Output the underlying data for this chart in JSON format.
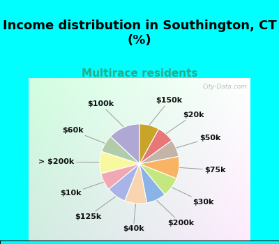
{
  "title": "Income distribution in Southington, CT\n(%)",
  "subtitle": "Multirace residents",
  "bg_cyan": "#00FFFF",
  "bg_chart_color": "#d4ede4",
  "labels": [
    "$100k",
    "$60k",
    "> $200k",
    "$10k",
    "$125k",
    "$40k",
    "$200k",
    "$30k",
    "$75k",
    "$50k",
    "$20k",
    "$150k"
  ],
  "values": [
    13,
    7,
    9,
    7,
    8,
    9,
    8,
    8,
    9,
    7,
    7,
    8
  ],
  "colors": [
    "#b0a8d4",
    "#b0ccaa",
    "#f8f8a0",
    "#f0a8b4",
    "#a8b4e8",
    "#f8d4b0",
    "#8ab4e8",
    "#c4e880",
    "#f8b464",
    "#c4b4a8",
    "#e87878",
    "#c8a428"
  ],
  "title_fontsize": 13,
  "subtitle_fontsize": 11,
  "subtitle_color": "#2aaa88",
  "label_fontsize": 8,
  "watermark": "City-Data.com"
}
